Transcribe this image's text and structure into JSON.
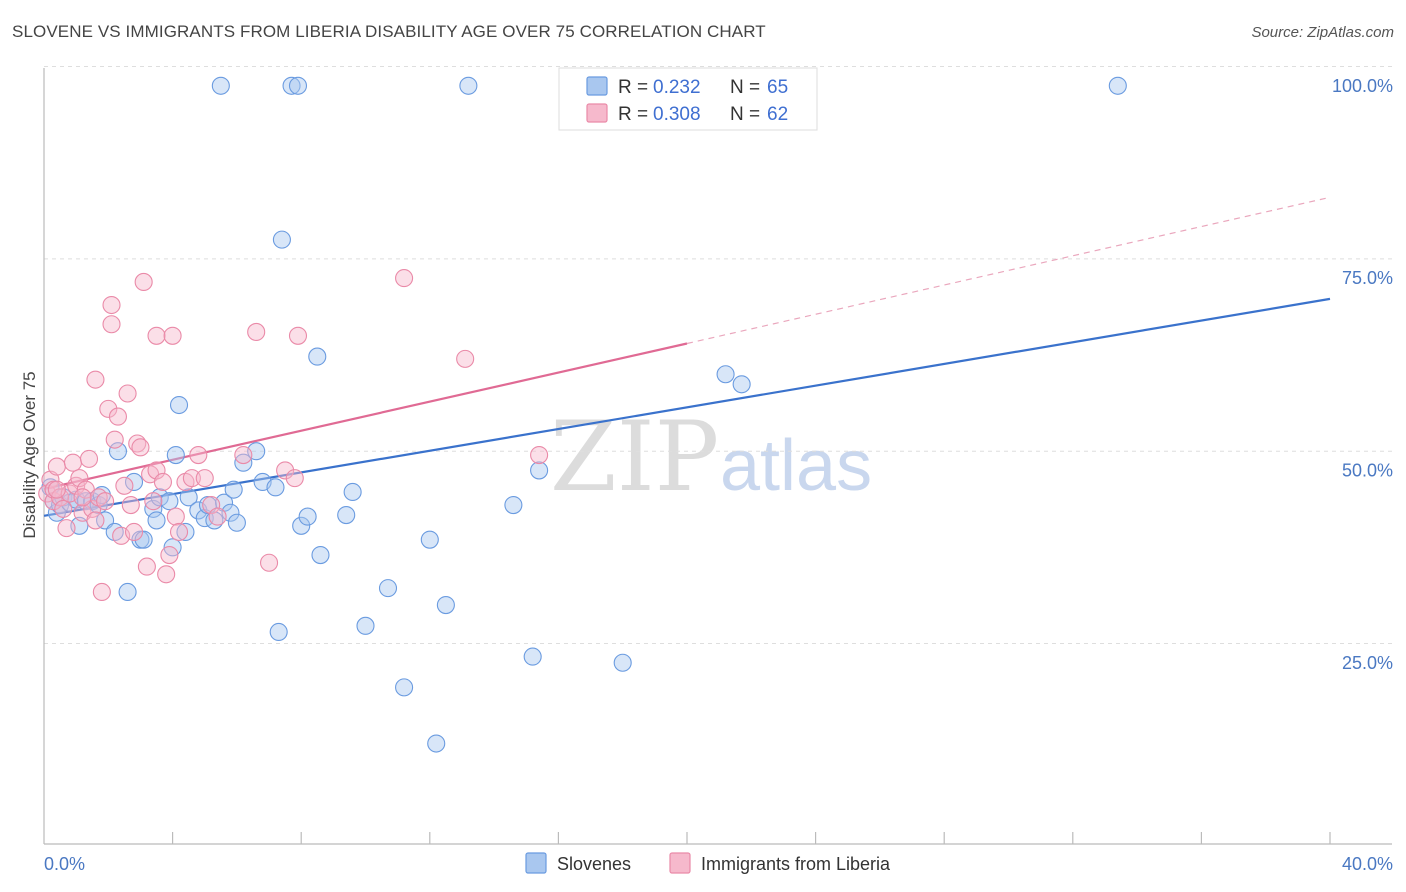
{
  "title": "SLOVENE VS IMMIGRANTS FROM LIBERIA DISABILITY AGE OVER 75 CORRELATION CHART",
  "source": "Source: ZipAtlas.com",
  "watermark": {
    "zip": "ZIP",
    "atlas": "atlas"
  },
  "legend_box": {
    "rows": [
      {
        "r_label": "R =",
        "r_value": "0.232",
        "n_label": "N =",
        "n_value": "65",
        "color": "#a9c7ef"
      },
      {
        "r_label": "R =",
        "r_value": "0.308",
        "n_label": "N =",
        "n_value": "62",
        "color": "#f6b9cc"
      }
    ]
  },
  "bottom_legend": [
    {
      "label": "Slovenes",
      "color": "#a9c7ef"
    },
    {
      "label": "Immigrants from Liberia",
      "color": "#f6b9cc"
    }
  ],
  "chart_data": {
    "type": "scatter",
    "ylabel": "Disability Age Over 75",
    "xlim": [
      0,
      40
    ],
    "ylim": [
      3,
      104
    ],
    "x_tick_labels": [
      {
        "value": 0,
        "label": "0.0%"
      },
      {
        "value": 40,
        "label": "40.0%"
      }
    ],
    "y_tick_labels": [
      {
        "value": 100,
        "label": "100.0%"
      },
      {
        "value": 75,
        "label": "75.0%"
      },
      {
        "value": 50,
        "label": "50.0%"
      },
      {
        "value": 25,
        "label": "25.0%"
      }
    ],
    "y_gridlines": [
      102.5,
      77.5,
      52.5,
      27.5
    ],
    "x_minor_ticks": [
      4,
      8,
      12,
      16,
      20,
      24,
      28,
      32,
      36,
      40
    ],
    "series": [
      {
        "name": "Slovenes",
        "color": "#6a9be0",
        "fill": "#a9c7ef",
        "trend": {
          "x": [
            0,
            40
          ],
          "y": [
            44.1,
            72.3
          ],
          "style": "solid",
          "line_color": "#3a72cc"
        },
        "points": [
          [
            0.2,
            47.8
          ],
          [
            0.3,
            46.0
          ],
          [
            0.4,
            44.5
          ],
          [
            0.5,
            45.5
          ],
          [
            0.6,
            46.5
          ],
          [
            0.8,
            45.8
          ],
          [
            1.0,
            46.2
          ],
          [
            1.1,
            42.8
          ],
          [
            1.3,
            46.0
          ],
          [
            1.5,
            46.0
          ],
          [
            1.7,
            45.5
          ],
          [
            1.8,
            46.8
          ],
          [
            1.9,
            43.5
          ],
          [
            2.2,
            42.0
          ],
          [
            2.3,
            52.5
          ],
          [
            2.6,
            34.2
          ],
          [
            2.8,
            48.5
          ],
          [
            3.0,
            41.0
          ],
          [
            3.1,
            41.0
          ],
          [
            3.4,
            45.0
          ],
          [
            3.5,
            43.5
          ],
          [
            3.6,
            46.5
          ],
          [
            3.9,
            46.0
          ],
          [
            4.0,
            40.0
          ],
          [
            4.1,
            52.0
          ],
          [
            4.2,
            58.5
          ],
          [
            4.4,
            42.0
          ],
          [
            4.5,
            46.5
          ],
          [
            4.8,
            44.8
          ],
          [
            5.0,
            43.8
          ],
          [
            5.1,
            45.5
          ],
          [
            5.3,
            43.5
          ],
          [
            5.5,
            100.0
          ],
          [
            5.6,
            45.8
          ],
          [
            5.8,
            44.5
          ],
          [
            5.9,
            47.5
          ],
          [
            6.0,
            43.2
          ],
          [
            6.2,
            51.0
          ],
          [
            6.6,
            52.5
          ],
          [
            6.8,
            48.5
          ],
          [
            7.2,
            47.8
          ],
          [
            7.3,
            29.0
          ],
          [
            7.4,
            80.0
          ],
          [
            7.7,
            100.0
          ],
          [
            7.9,
            100.0
          ],
          [
            8.0,
            42.8
          ],
          [
            8.2,
            44.0
          ],
          [
            8.5,
            64.8
          ],
          [
            8.6,
            39.0
          ],
          [
            9.4,
            44.2
          ],
          [
            9.6,
            47.2
          ],
          [
            10.0,
            29.8
          ],
          [
            10.7,
            34.7
          ],
          [
            11.2,
            21.8
          ],
          [
            12.0,
            41.0
          ],
          [
            12.2,
            14.5
          ],
          [
            12.5,
            32.5
          ],
          [
            13.2,
            100.0
          ],
          [
            14.6,
            45.5
          ],
          [
            15.2,
            25.8
          ],
          [
            15.4,
            50.0
          ],
          [
            18.0,
            25.0
          ],
          [
            21.2,
            62.5
          ],
          [
            21.7,
            61.2
          ],
          [
            33.4,
            100.0
          ]
        ]
      },
      {
        "name": "Immigrants from Liberia",
        "color": "#ea8aa8",
        "fill": "#f6b9cc",
        "trend": {
          "x": [
            0,
            20
          ],
          "y": [
            47.6,
            66.5
          ],
          "style": "solid",
          "line_color": "#e06a94"
        },
        "trend_extension": {
          "x": [
            20,
            40
          ],
          "y": [
            66.5,
            85.5
          ],
          "style": "dashed",
          "line_color": "#eaa7bd"
        },
        "points": [
          [
            0.1,
            47.0
          ],
          [
            0.2,
            48.8
          ],
          [
            0.3,
            46.0
          ],
          [
            0.3,
            47.5
          ],
          [
            0.4,
            50.5
          ],
          [
            0.5,
            46.5
          ],
          [
            0.6,
            45.0
          ],
          [
            0.7,
            42.5
          ],
          [
            0.8,
            47.0
          ],
          [
            0.9,
            51.0
          ],
          [
            1.0,
            48.0
          ],
          [
            1.1,
            49.0
          ],
          [
            1.2,
            44.5
          ],
          [
            1.3,
            47.5
          ],
          [
            1.4,
            51.5
          ],
          [
            1.5,
            45.0
          ],
          [
            1.6,
            43.5
          ],
          [
            1.6,
            61.8
          ],
          [
            1.7,
            46.5
          ],
          [
            1.8,
            34.2
          ],
          [
            1.9,
            46.0
          ],
          [
            2.0,
            58.0
          ],
          [
            2.1,
            69.0
          ],
          [
            2.1,
            71.5
          ],
          [
            2.2,
            54.0
          ],
          [
            2.3,
            57.0
          ],
          [
            2.4,
            41.5
          ],
          [
            2.5,
            48.0
          ],
          [
            2.6,
            60.0
          ],
          [
            2.7,
            45.5
          ],
          [
            2.8,
            42.0
          ],
          [
            2.9,
            53.5
          ],
          [
            3.0,
            53.0
          ],
          [
            3.1,
            74.5
          ],
          [
            3.2,
            37.5
          ],
          [
            3.3,
            49.5
          ],
          [
            3.4,
            46.0
          ],
          [
            3.5,
            50.0
          ],
          [
            3.5,
            67.5
          ],
          [
            3.7,
            48.5
          ],
          [
            3.8,
            36.5
          ],
          [
            3.9,
            39.0
          ],
          [
            4.0,
            67.5
          ],
          [
            4.1,
            44.0
          ],
          [
            4.2,
            42.0
          ],
          [
            4.4,
            48.5
          ],
          [
            4.6,
            49.0
          ],
          [
            4.8,
            52.0
          ],
          [
            5.0,
            49.0
          ],
          [
            5.2,
            45.5
          ],
          [
            5.4,
            44.0
          ],
          [
            6.2,
            52.0
          ],
          [
            6.6,
            68.0
          ],
          [
            7.0,
            38.0
          ],
          [
            7.5,
            50.0
          ],
          [
            7.8,
            49.0
          ],
          [
            7.9,
            67.5
          ],
          [
            11.2,
            75.0
          ],
          [
            13.1,
            64.5
          ],
          [
            15.4,
            52.0
          ],
          [
            0.4,
            47.5
          ],
          [
            1.2,
            46.5
          ]
        ]
      }
    ]
  }
}
